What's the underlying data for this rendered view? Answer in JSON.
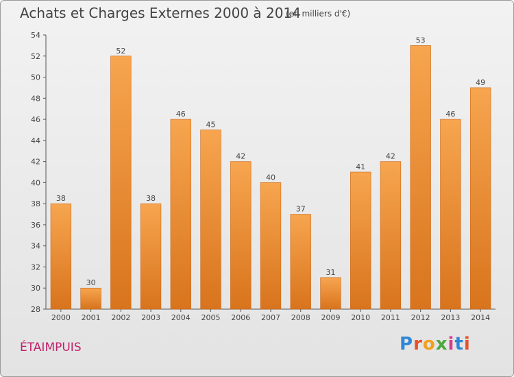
{
  "header": {
    "title": "Achats et Charges Externes 2000 à 2014",
    "subtitle": "(en milliers d'€)"
  },
  "location": "ÉTAIMPUIS",
  "brand": {
    "letters": [
      "P",
      "r",
      "o",
      "x",
      "i",
      "t",
      "i"
    ],
    "colors": [
      "#2e86d6",
      "#e8502a",
      "#f0a020",
      "#4aa83c",
      "#d63a8a",
      "#2e86d6",
      "#e8502a"
    ]
  },
  "colors": {
    "bar_top": "#f7a54f",
    "bar_bottom": "#d8741d",
    "axis": "#555555",
    "grid": "#cfcfcf",
    "location": "#c0206a"
  },
  "chart_data": {
    "type": "bar",
    "categories": [
      "2000",
      "2001",
      "2002",
      "2003",
      "2004",
      "2005",
      "2006",
      "2007",
      "2008",
      "2009",
      "2010",
      "2011",
      "2012",
      "2013",
      "2014"
    ],
    "values": [
      38,
      30,
      52,
      38,
      46,
      45,
      42,
      40,
      37,
      31,
      41,
      42,
      53,
      46,
      49
    ],
    "title": "Achats et Charges Externes 2000 à 2014",
    "subtitle": "(en milliers d'€)",
    "xlabel": "",
    "ylabel": "",
    "ylim": [
      28,
      54
    ],
    "yticks": [
      28,
      30,
      32,
      34,
      36,
      38,
      40,
      42,
      44,
      46,
      48,
      50,
      52,
      54
    ],
    "grid": false,
    "data_labels": true
  }
}
